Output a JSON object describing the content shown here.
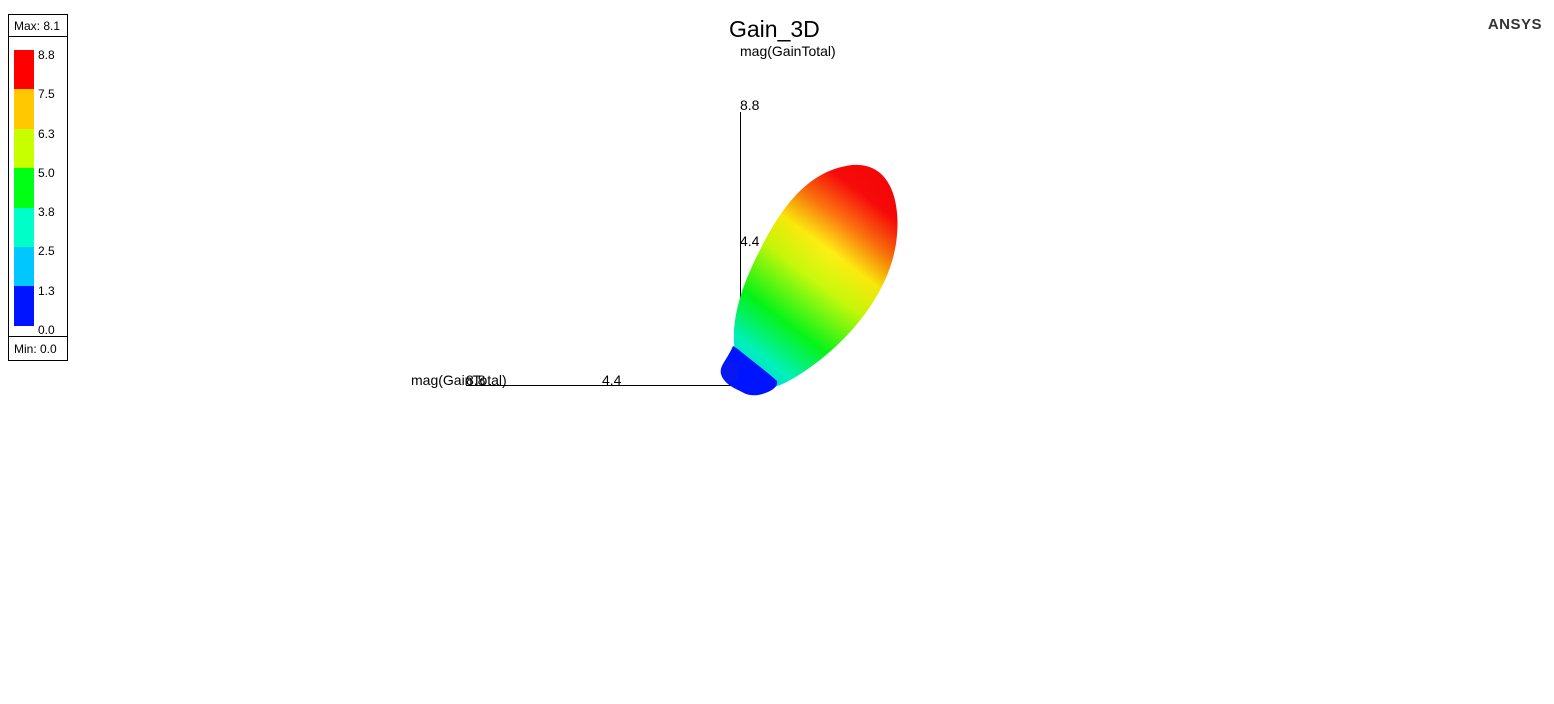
{
  "title": "Gain_3D",
  "brand": "ANSYS",
  "legend": {
    "max_label": "Max: 8.1",
    "min_label": "Min: 0.0",
    "ticks": [
      "8.8",
      "7.5",
      "6.3",
      "5.0",
      "3.8",
      "2.5",
      "1.3",
      "0.0"
    ],
    "colors": [
      "#ff0000",
      "#ffc800",
      "#c8ff00",
      "#00ff14",
      "#00ffc8",
      "#00c8ff",
      "#0014ff"
    ]
  },
  "axes": {
    "z": {
      "label": "mag(GainTotal)",
      "ticks": [
        "8.8",
        "4.4"
      ]
    },
    "x": {
      "label": "mag(GainTotal)",
      "ticks": [
        "8.8",
        "4.4"
      ]
    }
  }
}
